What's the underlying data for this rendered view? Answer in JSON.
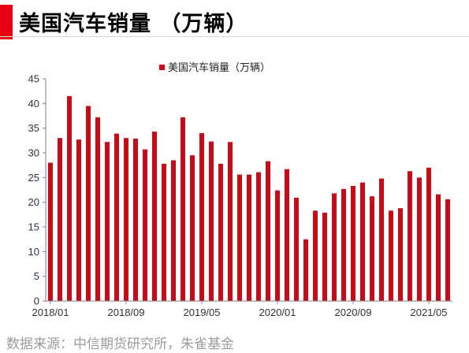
{
  "header": {
    "title": "美国汽车销量 （万辆）"
  },
  "footer": {
    "source": "数据来源：中信期货研究所，朱雀基金"
  },
  "colors": {
    "accent": "#e60012",
    "bar": "#cc0a17"
  },
  "chart_data": {
    "type": "bar",
    "series": [
      {
        "name": "美国汽车销量（万辆）",
        "values": [
          28,
          33,
          41.5,
          32.7,
          39.5,
          37.2,
          32.2,
          33.9,
          33,
          32.9,
          30.7,
          34.3,
          27.8,
          28.5,
          37.2,
          29.5,
          34,
          32.3,
          27.8,
          32.2,
          25.6,
          25.6,
          26.1,
          28.3,
          22.4,
          26.7,
          20.9,
          12.5,
          18.3,
          17.9,
          21.8,
          22.7,
          23.3,
          24,
          21.2,
          24.8,
          18.3,
          18.8,
          26.3,
          25,
          27,
          21.6,
          20.6
        ]
      }
    ],
    "ylim": [
      0,
      45
    ],
    "yticks": [
      "0",
      "5",
      "10",
      "15",
      "20",
      "25",
      "30",
      "35",
      "40",
      "45"
    ],
    "xtick_labels": [
      "2018/01",
      "2018/09",
      "2019/05",
      "2020/01",
      "2020/09",
      "2021/05"
    ],
    "legend_position": "top-center",
    "grid": false
  }
}
